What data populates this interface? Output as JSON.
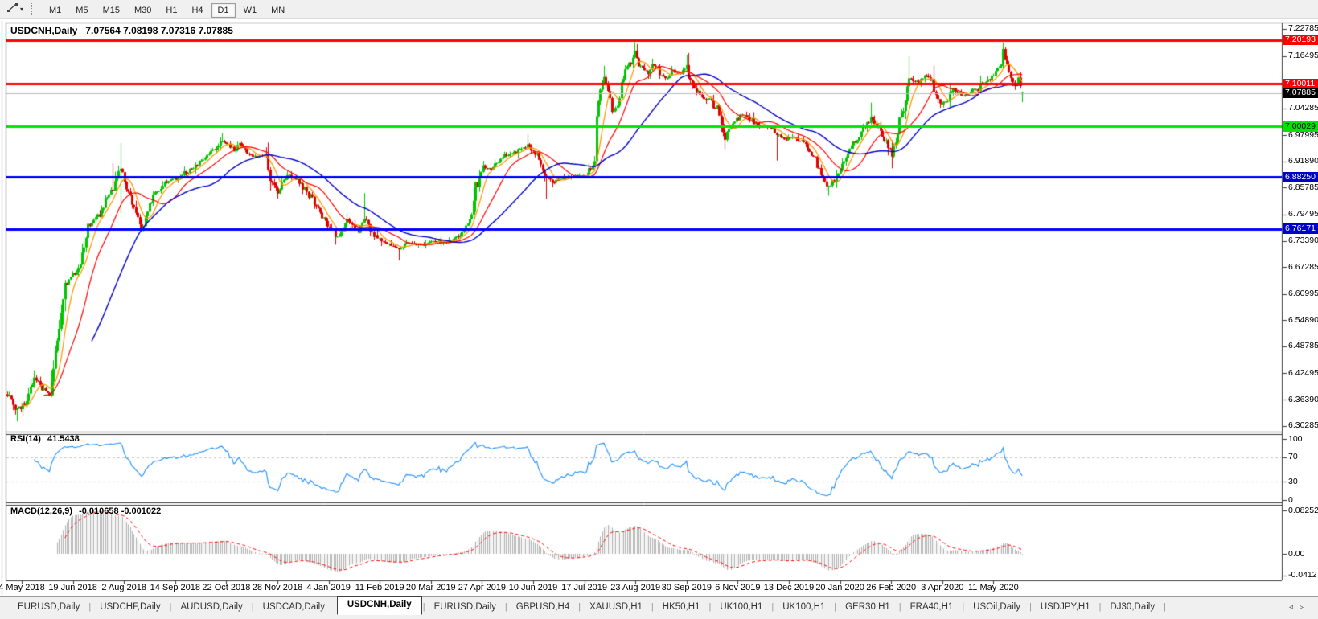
{
  "toolbar": {
    "dropdown_caret": "▾",
    "timeframes": [
      "M1",
      "M5",
      "M15",
      "M30",
      "H1",
      "H4",
      "D1",
      "W1",
      "MN"
    ],
    "active_timeframe": "D1"
  },
  "chart": {
    "title": "USDCNH,Daily",
    "ohlc_text": "7.07564 7.08198 7.07316 7.07885"
  },
  "indicators": {
    "rsi_label": "RSI(14)",
    "rsi_value": "41.5438",
    "macd_label": "MACD(12,26,9)",
    "macd_values": "-0.010658 -0.001022"
  },
  "tabs": {
    "items": [
      "EURUSD,Daily",
      "USDCHF,Daily",
      "AUDUSD,Daily",
      "USDCAD,Daily",
      "USDCNH,Daily",
      "EURUSD,Daily",
      "GBPUSD,H4",
      "XAUUSD,H1",
      "HK50,H1",
      "UK100,H1",
      "UK100,H1",
      "GER30,H1",
      "FRA40,H1",
      "USOil,Daily",
      "USDJPY,H1",
      "DJ30,Daily"
    ],
    "active_index": 4,
    "scroll_left_icon": "◃",
    "scroll_right_icon": "▹"
  },
  "chart_data": {
    "type": "candlestick-with-indicators",
    "symbol": "USDCNH",
    "timeframe": "Daily",
    "current_ohlc": {
      "open": 7.07564,
      "high": 7.08198,
      "low": 7.07316,
      "close": 7.07885
    },
    "up_color": "#00c400",
    "down_color": "#e00000",
    "price_axis_ticks": [
      "7.22785",
      "7.16495",
      "7.04285",
      "6.97995",
      "6.91890",
      "6.85785",
      "6.79495",
      "6.73390",
      "6.67285",
      "6.60995",
      "6.54890",
      "6.48785",
      "6.42495",
      "6.36390",
      "6.30285"
    ],
    "x_labels": [
      "4 May 2018",
      "19 Jun 2018",
      "2 Aug 2018",
      "14 Sep 2018",
      "22 Oct 2018",
      "28 Nov 2018",
      "4 Jan 2019",
      "11 Feb 2019",
      "20 Mar 2019",
      "27 Apr 2019",
      "10 Jun 2019",
      "17 Jul 2019",
      "23 Aug 2019",
      "30 Sep 2019",
      "6 Nov 2019",
      "13 Dec 2019",
      "20 Jan 2020",
      "26 Feb 2020",
      "3 Apr 2020",
      "11 May 2020"
    ],
    "levels": [
      {
        "label": "7.20193",
        "price": 7.20193,
        "line_color": "#ff0000",
        "badge_bg": "#ff0000",
        "badge_fg": "#ffffff",
        "style": "horizontal-line"
      },
      {
        "label": "7.10011",
        "price": 7.10011,
        "line_color": "#ff0000",
        "badge_bg": "#ff0000",
        "badge_fg": "#ffffff",
        "style": "horizontal-line"
      },
      {
        "label": "7.07885",
        "price": 7.07885,
        "line_color": "#bdbdbd",
        "badge_bg": "#000000",
        "badge_fg": "#ffffff",
        "style": "current-price"
      },
      {
        "label": "7.00029",
        "price": 7.00029,
        "line_color": "#00e400",
        "badge_bg": "#00e400",
        "badge_fg": "#000000",
        "style": "horizontal-line"
      },
      {
        "label": "6.88250",
        "price": 6.8825,
        "line_color": "#0000ff",
        "badge_bg": "#0000cc",
        "badge_fg": "#ffffff",
        "style": "horizontal-line"
      },
      {
        "label": "6.76171",
        "price": 6.76171,
        "line_color": "#0000ff",
        "badge_bg": "#0000cc",
        "badge_fg": "#ffffff",
        "style": "horizontal-line"
      }
    ],
    "moving_averages": [
      {
        "period": 8,
        "color": "#ff9900"
      },
      {
        "period": 20,
        "color": "#ff0000"
      },
      {
        "period": 45,
        "color": "#0000cc"
      }
    ],
    "rsi": {
      "period": 14,
      "value": 41.5438,
      "color": "#1e90ff",
      "dashed_levels": [
        70,
        30
      ],
      "axis_ticks": [
        "100",
        "70",
        "30",
        "0"
      ]
    },
    "macd": {
      "fast": 12,
      "slow": 26,
      "signal": 9,
      "value": -0.010658,
      "signal_value": -0.001022,
      "histogram_color": "#aeaeae",
      "signal_color": "#ff0000",
      "axis_ticks": [
        "0.082525",
        "0.00",
        "-0.041275"
      ]
    },
    "candle_count": 530,
    "anchors": [
      [
        0,
        6.375
      ],
      [
        5,
        6.34
      ],
      [
        10,
        6.36
      ],
      [
        14,
        6.42
      ],
      [
        18,
        6.39
      ],
      [
        22,
        6.38
      ],
      [
        26,
        6.5
      ],
      [
        30,
        6.63
      ],
      [
        34,
        6.65
      ],
      [
        38,
        6.68
      ],
      [
        42,
        6.77
      ],
      [
        47,
        6.79
      ],
      [
        51,
        6.83
      ],
      [
        55,
        6.86
      ],
      [
        59,
        6.9
      ],
      [
        62,
        6.86
      ],
      [
        67,
        6.8
      ],
      [
        70,
        6.76
      ],
      [
        76,
        6.84
      ],
      [
        82,
        6.87
      ],
      [
        88,
        6.88
      ],
      [
        97,
        6.905
      ],
      [
        104,
        6.93
      ],
      [
        112,
        6.965
      ],
      [
        118,
        6.945
      ],
      [
        121,
        6.96
      ],
      [
        128,
        6.93
      ],
      [
        135,
        6.935
      ],
      [
        137,
        6.87
      ],
      [
        141,
        6.85
      ],
      [
        146,
        6.89
      ],
      [
        150,
        6.88
      ],
      [
        155,
        6.855
      ],
      [
        162,
        6.81
      ],
      [
        167,
        6.77
      ],
      [
        172,
        6.745
      ],
      [
        177,
        6.78
      ],
      [
        183,
        6.76
      ],
      [
        186,
        6.79
      ],
      [
        191,
        6.745
      ],
      [
        197,
        6.73
      ],
      [
        204,
        6.715
      ],
      [
        210,
        6.73
      ],
      [
        216,
        6.725
      ],
      [
        223,
        6.735
      ],
      [
        229,
        6.73
      ],
      [
        235,
        6.745
      ],
      [
        238,
        6.76
      ],
      [
        241,
        6.78
      ],
      [
        244,
        6.86
      ],
      [
        248,
        6.91
      ],
      [
        252,
        6.9
      ],
      [
        258,
        6.93
      ],
      [
        264,
        6.94
      ],
      [
        271,
        6.955
      ],
      [
        276,
        6.93
      ],
      [
        281,
        6.88
      ],
      [
        285,
        6.87
      ],
      [
        290,
        6.88
      ],
      [
        296,
        6.885
      ],
      [
        302,
        6.885
      ],
      [
        306,
        6.92
      ],
      [
        307,
        7.02
      ],
      [
        309,
        7.09
      ],
      [
        311,
        7.11
      ],
      [
        314,
        7.06
      ],
      [
        316,
        7.03
      ],
      [
        319,
        7.07
      ],
      [
        322,
        7.13
      ],
      [
        325,
        7.15
      ],
      [
        327,
        7.17
      ],
      [
        330,
        7.14
      ],
      [
        334,
        7.125
      ],
      [
        337,
        7.15
      ],
      [
        340,
        7.12
      ],
      [
        343,
        7.11
      ],
      [
        347,
        7.13
      ],
      [
        350,
        7.12
      ],
      [
        354,
        7.14
      ],
      [
        357,
        7.1
      ],
      [
        362,
        7.07
      ],
      [
        366,
        7.06
      ],
      [
        370,
        7.04
      ],
      [
        374,
        6.975
      ],
      [
        378,
        7.01
      ],
      [
        383,
        7.03
      ],
      [
        387,
        7.02
      ],
      [
        392,
        7.0
      ],
      [
        398,
        7.0
      ],
      [
        401,
        6.98
      ],
      [
        405,
        6.97
      ],
      [
        410,
        6.975
      ],
      [
        415,
        6.96
      ],
      [
        420,
        6.93
      ],
      [
        424,
        6.89
      ],
      [
        428,
        6.86
      ],
      [
        432,
        6.88
      ],
      [
        437,
        6.93
      ],
      [
        441,
        6.96
      ],
      [
        445,
        6.985
      ],
      [
        450,
        7.02
      ],
      [
        454,
        7.0
      ],
      [
        457,
        6.97
      ],
      [
        461,
        6.93
      ],
      [
        464,
        6.99
      ],
      [
        468,
        7.06
      ],
      [
        470,
        7.11
      ],
      [
        474,
        7.1
      ],
      [
        478,
        7.12
      ],
      [
        482,
        7.1
      ],
      [
        486,
        7.05
      ],
      [
        489,
        7.06
      ],
      [
        493,
        7.09
      ],
      [
        497,
        7.07
      ],
      [
        501,
        7.08
      ],
      [
        506,
        7.09
      ],
      [
        508,
        7.1
      ],
      [
        512,
        7.11
      ],
      [
        515,
        7.13
      ],
      [
        518,
        7.15
      ],
      [
        519,
        7.175
      ],
      [
        521,
        7.14
      ],
      [
        523,
        7.115
      ],
      [
        525,
        7.095
      ],
      [
        527,
        7.11
      ],
      [
        529,
        7.0789
      ]
    ],
    "spikes": [
      [
        5,
        "l",
        6.313
      ],
      [
        14,
        "h",
        6.432
      ],
      [
        55,
        "h",
        6.915
      ],
      [
        59,
        "h",
        6.962
      ],
      [
        59,
        "l",
        6.798
      ],
      [
        112,
        "h",
        6.985
      ],
      [
        135,
        "h",
        6.952
      ],
      [
        186,
        "h",
        6.845
      ],
      [
        204,
        "l",
        6.688
      ],
      [
        271,
        "h",
        6.982
      ],
      [
        281,
        "l",
        6.832
      ],
      [
        307,
        "l",
        6.946
      ],
      [
        311,
        "h",
        7.142
      ],
      [
        327,
        "h",
        7.197
      ],
      [
        354,
        "h",
        7.168
      ],
      [
        374,
        "l",
        6.948
      ],
      [
        401,
        "l",
        6.921
      ],
      [
        428,
        "l",
        6.839
      ],
      [
        450,
        "h",
        7.056
      ],
      [
        461,
        "l",
        6.903
      ],
      [
        470,
        "h",
        7.164
      ],
      [
        519,
        "h",
        7.1965
      ],
      [
        529,
        "l",
        7.057
      ]
    ]
  }
}
